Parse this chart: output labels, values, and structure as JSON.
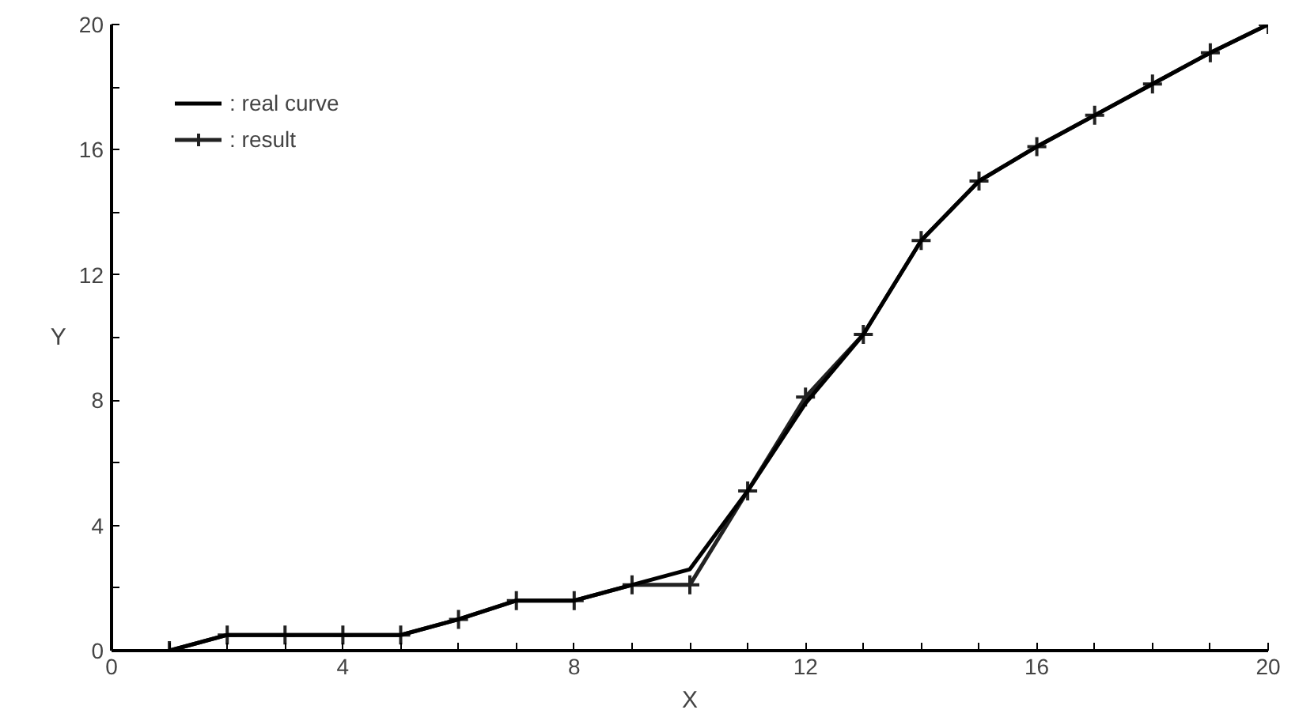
{
  "chart_data": {
    "type": "line",
    "xlabel": "X",
    "ylabel": "Y",
    "xlim": [
      0,
      20
    ],
    "ylim": [
      0,
      20
    ],
    "xticks": [
      0,
      {
        "value": 1,
        "label": null
      },
      {
        "value": 2,
        "label": null
      },
      {
        "value": 3,
        "label": null
      },
      4,
      {
        "value": 5,
        "label": null
      },
      {
        "value": 6,
        "label": null
      },
      {
        "value": 7,
        "label": null
      },
      8,
      {
        "value": 9,
        "label": null
      },
      {
        "value": 10,
        "label": null
      },
      {
        "value": 11,
        "label": null
      },
      12,
      {
        "value": 13,
        "label": null
      },
      {
        "value": 14,
        "label": null
      },
      {
        "value": 15,
        "label": null
      },
      16,
      {
        "value": 17,
        "label": null
      },
      {
        "value": 18,
        "label": null
      },
      {
        "value": 19,
        "label": null
      },
      20
    ],
    "yticks": [
      0,
      {
        "value": 2,
        "label": null
      },
      4,
      {
        "value": 6,
        "label": null
      },
      8,
      {
        "value": 10,
        "label": null
      },
      12,
      {
        "value": 14,
        "label": null
      },
      16,
      {
        "value": 18,
        "label": null
      },
      20
    ],
    "x": [
      1,
      2,
      3,
      4,
      5,
      6,
      7,
      8,
      9,
      10,
      11,
      12,
      13,
      14,
      15,
      16,
      17,
      18,
      19,
      20
    ],
    "series": [
      {
        "name": ": real curve",
        "color": "#000000",
        "marker": "none",
        "values": [
          0,
          0.5,
          0.5,
          0.5,
          0.5,
          1.0,
          1.6,
          1.6,
          2.1,
          2.6,
          5.1,
          7.9,
          10.1,
          13.1,
          15,
          16.1,
          17.1,
          18.1,
          19.1,
          20
        ]
      },
      {
        "name": ": result",
        "color": "#222222",
        "marker": "cross",
        "values": [
          0,
          0.5,
          0.5,
          0.5,
          0.5,
          1.0,
          1.6,
          1.6,
          2.1,
          2.1,
          5.1,
          8.1,
          10.1,
          13.1,
          15,
          16.1,
          17.1,
          18.1,
          19.1,
          20
        ]
      }
    ],
    "legend": "top left",
    "grid": false
  }
}
